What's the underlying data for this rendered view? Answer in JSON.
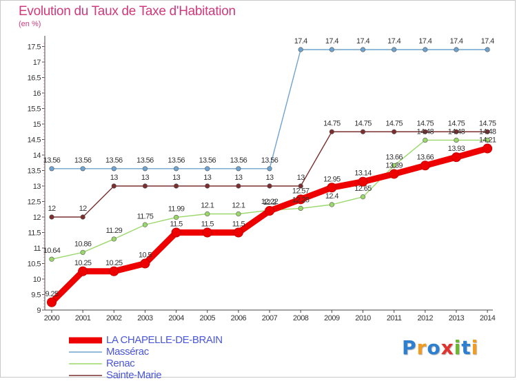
{
  "chart_data": {
    "type": "line",
    "title": "Evolution du Taux de Taxe d'Habitation",
    "unit_label": "(en %)",
    "x": [
      "2000",
      "2001",
      "2002",
      "2003",
      "2004",
      "2005",
      "2006",
      "2007",
      "2008",
      "2009",
      "2010",
      "2011",
      "2012",
      "2013",
      "2014"
    ],
    "ylim": [
      9,
      17.6
    ],
    "yticks": [
      "9",
      "9.5",
      "10",
      "10.5",
      "11",
      "11.5",
      "12",
      "12.5",
      "13",
      "13.5",
      "14",
      "14.5",
      "15",
      "15.5",
      "16",
      "16.5",
      "17",
      "17.5"
    ],
    "grid": false,
    "legend_position": "bottom-left",
    "series": [
      {
        "name": "LA CHAPELLE-DE-BRAIN",
        "color": "#ee0000",
        "values": [
          9.25,
          10.25,
          10.25,
          10.5,
          11.5,
          11.5,
          11.5,
          12.2,
          12.57,
          12.95,
          13.14,
          13.39,
          13.66,
          13.93,
          14.21
        ],
        "labels": [
          "9.25",
          "10.25",
          "10.25",
          "10.5",
          "11.5",
          "11.5",
          "11.5",
          "12.2",
          "12.57",
          "12.95",
          "13.14",
          "13.39",
          "13.66",
          "13.93",
          "14.21"
        ]
      },
      {
        "name": "Massérac",
        "color": "#6fa3cf",
        "values": [
          13.56,
          13.56,
          13.56,
          13.56,
          13.56,
          13.56,
          13.56,
          13.56,
          17.4,
          17.4,
          17.4,
          17.4,
          17.4,
          17.4,
          17.4
        ],
        "labels": [
          "13.56",
          "13.56",
          "13.56",
          "13.56",
          "13.56",
          "13.56",
          "13.56",
          "13.56",
          "17.4",
          "17.4",
          "17.4",
          "17.4",
          "17.4",
          "17.4",
          "17.4"
        ]
      },
      {
        "name": "Renac",
        "color": "#9ad86a",
        "values": [
          10.64,
          10.86,
          11.29,
          11.75,
          11.99,
          12.1,
          12.1,
          12.22,
          12.28,
          12.4,
          12.65,
          13.66,
          14.48,
          14.48,
          14.48
        ],
        "labels": [
          "10.64",
          "10.86",
          "11.29",
          "11.75",
          "11.99",
          "12.1",
          "12.1",
          "12.22",
          "12.28",
          "12.4",
          "12.65",
          "13.66",
          "14.48",
          "14.48",
          "14.48"
        ]
      },
      {
        "name": "Sainte-Marie",
        "color": "#7a2e2e",
        "values": [
          12,
          12,
          13,
          13,
          13,
          13,
          13,
          13,
          13,
          14.75,
          14.75,
          14.75,
          14.75,
          14.75,
          14.75
        ],
        "labels": [
          "12",
          "12",
          "13",
          "13",
          "13",
          "13",
          "13",
          "13",
          "13",
          "14.75",
          "14.75",
          "14.75",
          "14.75",
          "14.75",
          "14.75"
        ]
      }
    ]
  },
  "logo": {
    "letters": [
      "P",
      "r",
      "o",
      "x",
      "i",
      "t",
      "i"
    ],
    "colors": [
      "#2d7fd0",
      "#f29c1f",
      "#2d7fd0",
      "#e0332e",
      "#69b82e",
      "#2d7fd0",
      "#f29c1f"
    ]
  }
}
